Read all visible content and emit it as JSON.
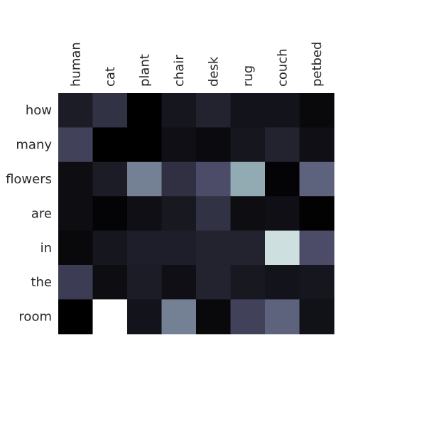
{
  "chart_data": {
    "type": "heatmap",
    "title": "",
    "xlabel": "",
    "ylabel": "",
    "x_labels": [
      "human",
      "cat",
      "plant",
      "chair",
      "desk",
      "rug",
      "couch",
      "petbed"
    ],
    "y_labels": [
      "how",
      "many",
      "flowers",
      "are",
      "in",
      "the",
      "room"
    ],
    "values": [
      [
        0.13,
        0.23,
        0.0,
        0.1,
        0.16,
        0.09,
        0.09,
        0.04
      ],
      [
        0.3,
        0.0,
        0.0,
        0.07,
        0.05,
        0.1,
        0.16,
        0.07
      ],
      [
        0.06,
        0.13,
        0.53,
        0.22,
        0.35,
        0.66,
        0.02,
        0.43
      ],
      [
        0.06,
        0.02,
        0.07,
        0.11,
        0.23,
        0.06,
        0.07,
        0.01
      ],
      [
        0.04,
        0.1,
        0.14,
        0.14,
        0.16,
        0.16,
        0.86,
        0.35
      ],
      [
        0.28,
        0.06,
        0.13,
        0.07,
        0.16,
        0.11,
        0.09,
        0.1
      ],
      [
        0.0,
        1.0,
        0.09,
        0.53,
        0.04,
        0.3,
        0.43,
        0.08
      ]
    ],
    "colormap": "bone",
    "grid": false,
    "legend": false
  }
}
